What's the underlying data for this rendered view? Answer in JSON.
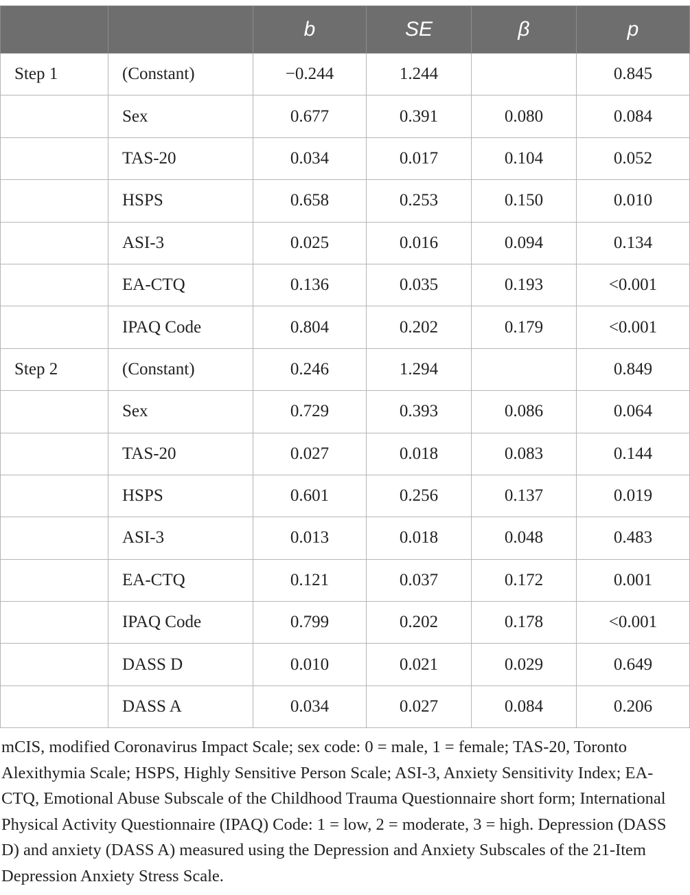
{
  "table": {
    "headers": [
      "",
      "",
      "b",
      "SE",
      "β",
      "p"
    ],
    "rows": [
      {
        "step": "Step 1",
        "var": "(Constant)",
        "b": "−0.244",
        "se": "1.244",
        "beta": "",
        "p": "0.845"
      },
      {
        "step": "",
        "var": "Sex",
        "b": "0.677",
        "se": "0.391",
        "beta": "0.080",
        "p": "0.084"
      },
      {
        "step": "",
        "var": "TAS-20",
        "b": "0.034",
        "se": "0.017",
        "beta": "0.104",
        "p": "0.052"
      },
      {
        "step": "",
        "var": "HSPS",
        "b": "0.658",
        "se": "0.253",
        "beta": "0.150",
        "p": "0.010"
      },
      {
        "step": "",
        "var": "ASI-3",
        "b": "0.025",
        "se": "0.016",
        "beta": "0.094",
        "p": "0.134"
      },
      {
        "step": "",
        "var": "EA-CTQ",
        "b": "0.136",
        "se": "0.035",
        "beta": "0.193",
        "p": "<0.001"
      },
      {
        "step": "",
        "var": "IPAQ Code",
        "b": "0.804",
        "se": "0.202",
        "beta": "0.179",
        "p": "<0.001"
      },
      {
        "step": "Step 2",
        "var": "(Constant)",
        "b": "0.246",
        "se": "1.294",
        "beta": "",
        "p": "0.849"
      },
      {
        "step": "",
        "var": "Sex",
        "b": "0.729",
        "se": "0.393",
        "beta": "0.086",
        "p": "0.064"
      },
      {
        "step": "",
        "var": "TAS-20",
        "b": "0.027",
        "se": "0.018",
        "beta": "0.083",
        "p": "0.144"
      },
      {
        "step": "",
        "var": "HSPS",
        "b": "0.601",
        "se": "0.256",
        "beta": "0.137",
        "p": "0.019"
      },
      {
        "step": "",
        "var": "ASI-3",
        "b": "0.013",
        "se": "0.018",
        "beta": "0.048",
        "p": "0.483"
      },
      {
        "step": "",
        "var": "EA-CTQ",
        "b": "0.121",
        "se": "0.037",
        "beta": "0.172",
        "p": "0.001"
      },
      {
        "step": "",
        "var": "IPAQ Code",
        "b": "0.799",
        "se": "0.202",
        "beta": "0.178",
        "p": "<0.001"
      },
      {
        "step": "",
        "var": "DASS D",
        "b": "0.010",
        "se": "0.021",
        "beta": "0.029",
        "p": "0.649"
      },
      {
        "step": "",
        "var": "DASS A",
        "b": "0.034",
        "se": "0.027",
        "beta": "0.084",
        "p": "0.206"
      }
    ]
  },
  "footnote": "mCIS, modified Coronavirus Impact Scale; sex code: 0 = male, 1 = female; TAS-20, Toronto Alexithymia Scale; HSPS, Highly Sensitive Person Scale; ASI-3, Anxiety Sensitivity Index; EA-CTQ, Emotional Abuse Subscale of the Childhood Trauma Questionnaire short form; International Physical Activity Questionnaire (IPAQ) Code: 1 = low, 2 = moderate, 3 = high. Depression (DASS D) and anxiety (DASS A) measured using the Depression and Anxiety Subscales of the 21-Item Depression Anxiety Stress Scale.",
  "colors": {
    "header_bg": "#6e6e6e",
    "header_text": "#ffffff",
    "border": "#b5b5b5",
    "text": "#222222"
  }
}
